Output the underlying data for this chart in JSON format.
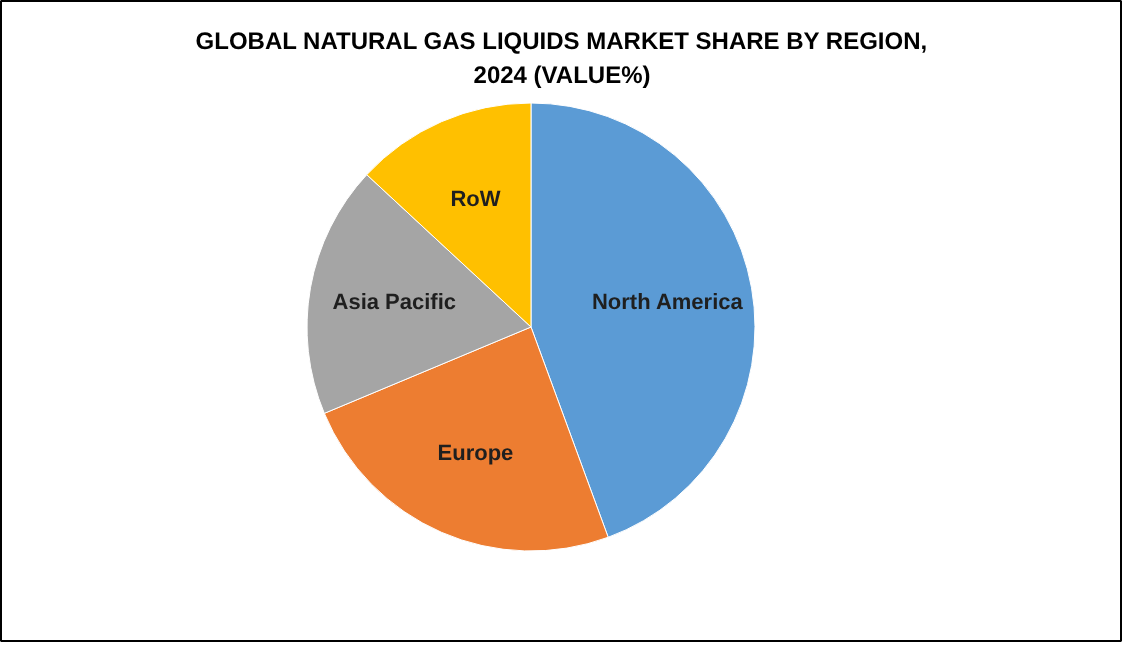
{
  "chart_data": {
    "type": "pie",
    "title": "GLOBAL NATURAL GAS LIQUIDS MARKET SHARE BY REGION,\n2024 (VALUE%)",
    "categories": [
      "North America",
      "Europe",
      "Asia Pacific",
      "RoW"
    ],
    "values": [
      44.4,
      24.3,
      18.2,
      13.1
    ],
    "colors": [
      "#5b9bd5",
      "#ed7d31",
      "#a5a5a5",
      "#ffc000"
    ]
  }
}
